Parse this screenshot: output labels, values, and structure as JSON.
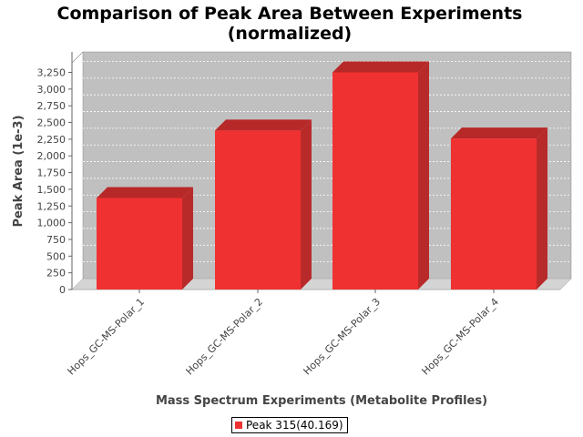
{
  "chart_data": {
    "type": "bar",
    "title": "Comparison of Peak Area Between Experiments",
    "subtitle": "(normalized)",
    "xlabel": "Mass Spectrum Experiments (Metabolite Profiles)",
    "ylabel": "Peak Area (1e-3)",
    "categories": [
      "Hops_GC-MS-Polar_1",
      "Hops_GC-MS-Polar_2",
      "Hops_GC-MS-Polar_3",
      "Hops_GC-MS-Polar_4"
    ],
    "series": [
      {
        "name": "Peak 315(40.169)",
        "values": [
          1370,
          2380,
          3250,
          2260
        ]
      }
    ],
    "ylim": [
      0,
      3300
    ],
    "yticks": [
      0,
      250,
      500,
      750,
      1000,
      1250,
      1500,
      1750,
      2000,
      2250,
      2500,
      2750,
      3000,
      3250
    ],
    "ytick_labels": [
      "0",
      "250",
      "500",
      "750",
      "1,000",
      "1,250",
      "1,500",
      "1,750",
      "2,000",
      "2,250",
      "2,500",
      "2,750",
      "3,000",
      "3,250"
    ],
    "grid": true,
    "legend_position": "bottom",
    "style": "3d",
    "colors": {
      "bar_front": "#f03131",
      "bar_top": "#b72828",
      "bar_side": "#b82a2a",
      "plot_background": "#c0c0c0",
      "plot_floor": "#d4d4d4",
      "grid": "#ffffff"
    }
  }
}
